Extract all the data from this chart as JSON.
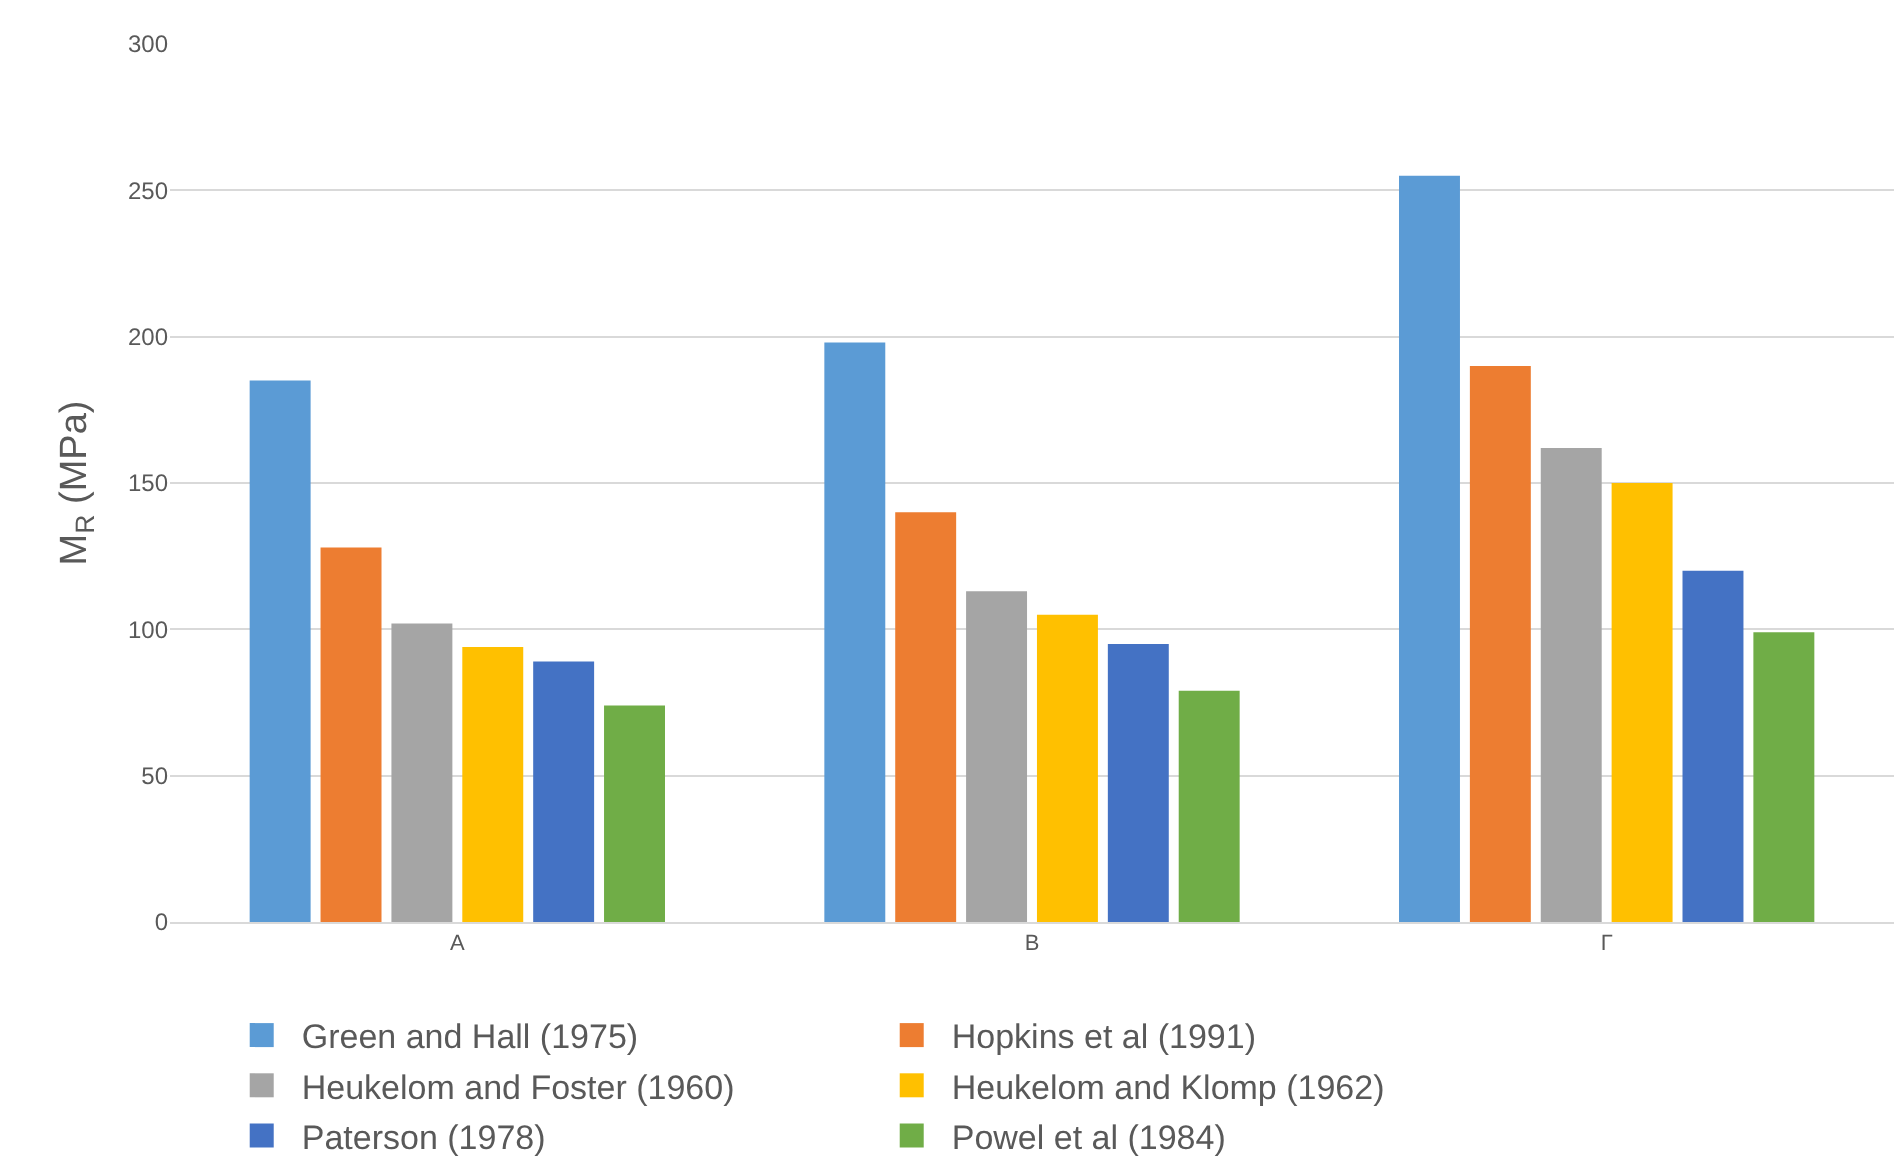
{
  "chart_data": {
    "type": "bar",
    "ylabel": "M$_{R}$ (MPa)",
    "categories": [
      "А",
      "В",
      "Г"
    ],
    "series": [
      {
        "name": "Green and Hall (1975)",
        "color": "#5b9bd5",
        "values": [
          185,
          198,
          255
        ]
      },
      {
        "name": "Hopkins et al (1991)",
        "color": "#ed7d31",
        "values": [
          128,
          140,
          190
        ]
      },
      {
        "name": "Heukelom and Foster (1960)",
        "color": "#a5a5a5",
        "values": [
          102,
          113,
          162
        ]
      },
      {
        "name": "Heukelom and Klomp (1962)",
        "color": "#ffc000",
        "values": [
          94,
          105,
          150
        ]
      },
      {
        "name": "Paterson (1978)",
        "color": "#4472c4",
        "values": [
          89,
          95,
          120
        ]
      },
      {
        "name": "Powel et al (1984)",
        "color": "#70ad47",
        "values": [
          74,
          79,
          99
        ]
      }
    ],
    "ylim": [
      0,
      300
    ],
    "yticks": [
      0,
      50,
      100,
      150,
      200,
      250,
      300
    ],
    "grid": "y",
    "legend": "bottom"
  }
}
